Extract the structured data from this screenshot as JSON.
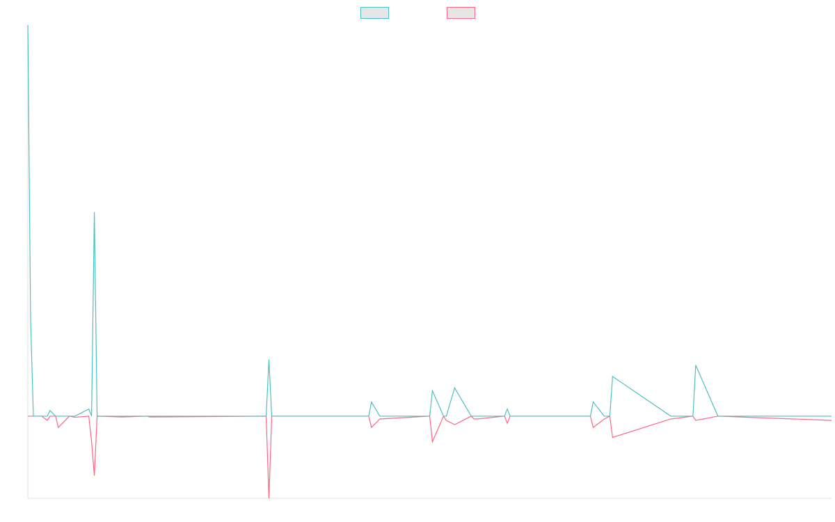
{
  "chart_data": {
    "type": "line",
    "title": "",
    "xlabel": "",
    "ylabel": "",
    "ylim": [
      -0.29,
      1.38
    ],
    "grid": false,
    "legend": {
      "placement": "top-center",
      "entries": [
        {
          "name": "",
          "color": "#4bc0c0",
          "fill": "#e6e6e6"
        },
        {
          "name": "",
          "color": "#ff6384",
          "fill": "#e6e6e6"
        }
      ]
    },
    "x": [
      0,
      1,
      2,
      5,
      7,
      8,
      10,
      11,
      15,
      17,
      22,
      23,
      24,
      25,
      34,
      43,
      44,
      86,
      87,
      88,
      99,
      123,
      124,
      127,
      145,
      146,
      150,
      151,
      154,
      160,
      161,
      162,
      172,
      173,
      174,
      203,
      204,
      208,
      210,
      211,
      232,
      240,
      241,
      249,
      290
    ],
    "series": [
      {
        "name": "",
        "color": "#4bc0c0",
        "values": [
          1.38,
          0.34,
          0,
          0,
          0,
          0.02,
          0,
          0,
          0,
          0,
          0.025,
          0,
          0.72,
          0,
          0,
          0,
          0,
          0,
          0.2,
          0,
          0,
          0,
          0.05,
          0,
          0,
          0.09,
          0,
          0,
          0.1,
          0,
          0,
          0,
          0,
          0.025,
          0,
          0,
          0.05,
          0,
          0,
          0.14,
          0,
          0,
          0.18,
          0,
          0
        ]
      },
      {
        "name": "",
        "color": "#ff6384",
        "values": [
          0,
          0,
          0,
          0,
          -0.015,
          0,
          0,
          -0.04,
          0,
          -0.004,
          0,
          -0.09,
          -0.21,
          0,
          -0.003,
          0,
          -0.003,
          0,
          -0.29,
          0,
          0,
          0,
          -0.04,
          -0.01,
          0,
          -0.09,
          0,
          -0.015,
          -0.03,
          0,
          -0.01,
          -0.01,
          0,
          -0.025,
          0,
          0,
          -0.04,
          -0.01,
          0,
          -0.075,
          -0.01,
          0,
          -0.015,
          0,
          -0.015
        ]
      }
    ]
  }
}
